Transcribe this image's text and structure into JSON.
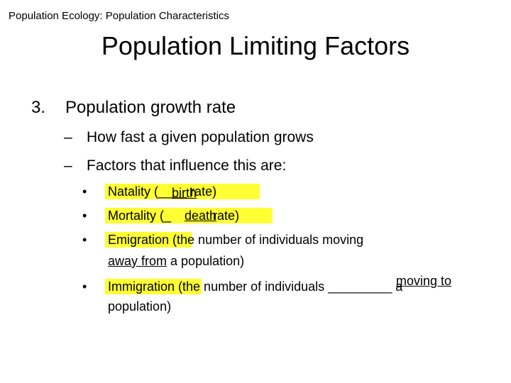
{
  "header": "Population Ecology:  Population Characteristics",
  "title": "Population Limiting Factors",
  "item3": {
    "number": "3.",
    "text": "Population growth rate"
  },
  "sub": [
    {
      "dash": "–",
      "text": "How fast a given population grows"
    },
    {
      "dash": "–",
      "text": "Factors that influence this are:"
    }
  ],
  "bullet": "•",
  "natality": {
    "lead": "Natality (",
    "blank_lead": "____",
    "answer": "birth",
    "trail": " rate)"
  },
  "mortality": {
    "lead": "Mortality (",
    "blank_lead": "_",
    "answer": "death",
    "trail": " rate)"
  },
  "emigration": {
    "lead": "Emigration (",
    "text": "the number of individuals moving",
    "blank_lead": " ",
    "answer": "away from",
    "text2": " a population)"
  },
  "immigration": {
    "lead": "Immigration (",
    "text": "the number of individuals ",
    "blank": "_________",
    "answer": "moving to",
    "text2": " a",
    "text3": "population)"
  }
}
